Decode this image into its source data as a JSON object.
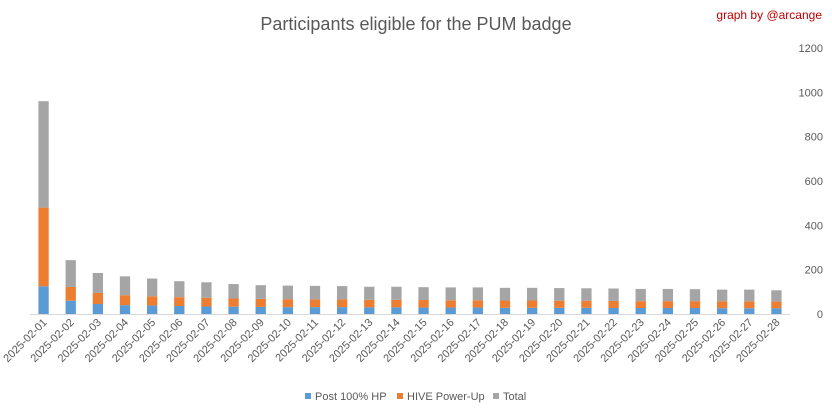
{
  "chart_data": {
    "type": "bar",
    "stacked": true,
    "title": "Participants eligible for the PUM badge",
    "credit": "graph by @arcange",
    "categories": [
      "2025-02-01",
      "2025-02-02",
      "2025-02-03",
      "2025-02-04",
      "2025-02-05",
      "2025-02-06",
      "2025-02-07",
      "2025-02-08",
      "2025-02-09",
      "2025-02-10",
      "2025-02-11",
      "2025-02-12",
      "2025-02-13",
      "2025-02-14",
      "2025-02-15",
      "2025-02-16",
      "2025-02-17",
      "2025-02-18",
      "2025-02-19",
      "2025-02-20",
      "2025-02-21",
      "2025-02-22",
      "2025-02-23",
      "2025-02-24",
      "2025-02-25",
      "2025-02-26",
      "2025-02-27",
      "2025-02-28"
    ],
    "series": [
      {
        "name": "Post 100% HP",
        "color": "#5b9bd5",
        "values": [
          125,
          60,
          45,
          40,
          38,
          36,
          34,
          33,
          32,
          31,
          31,
          31,
          30,
          30,
          29,
          29,
          29,
          28,
          28,
          28,
          28,
          27,
          27,
          27,
          27,
          26,
          26,
          26
        ]
      },
      {
        "name": "HIVE Power-Up",
        "color": "#ed7d31",
        "values": [
          355,
          62,
          50,
          45,
          42,
          40,
          39,
          37,
          36,
          36,
          35,
          35,
          34,
          34,
          34,
          33,
          33,
          33,
          33,
          32,
          32,
          32,
          31,
          31,
          31,
          31,
          31,
          30
        ]
      },
      {
        "name": "Total",
        "color": "#a5a5a5",
        "values": [
          480,
          121,
          90,
          85,
          80,
          72,
          70,
          65,
          62,
          61,
          61,
          60,
          59,
          59,
          58,
          58,
          58,
          57,
          57,
          57,
          56,
          56,
          55,
          55,
          54,
          53,
          53,
          51
        ]
      }
    ],
    "ylim": [
      0,
      1200
    ],
    "yticks": [
      0,
      200,
      400,
      600,
      800,
      1000,
      1200
    ],
    "yaxis_position": "right",
    "grid": false,
    "legend_position": "bottom"
  }
}
